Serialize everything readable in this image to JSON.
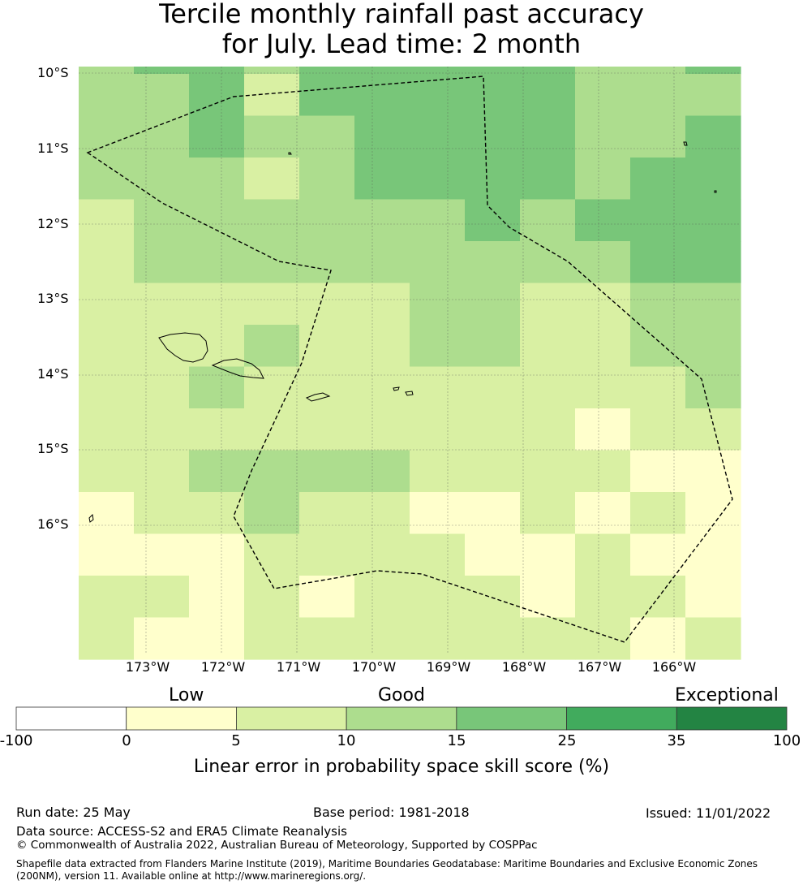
{
  "title_line1": "Tercile monthly rainfall past accuracy",
  "title_line2": "for July. Lead time: 2 month",
  "map": {
    "lat_labels": [
      "10°S",
      "11°S",
      "12°S",
      "13°S",
      "14°S",
      "15°S",
      "16°S"
    ],
    "lon_labels": [
      "173°W",
      "172°W",
      "171°W",
      "170°W",
      "169°W",
      "168°W",
      "167°W",
      "166°W"
    ],
    "skill_grid": [
      [
        "c10-15",
        "c15-25",
        "c15-25",
        "c10-15",
        "c15-25",
        "c15-25",
        "c15-25",
        "c15-25",
        "c15-25",
        "c10-15",
        "c10-15",
        "c15-25"
      ],
      [
        "c10-15",
        "c10-15",
        "c15-25",
        "c5-10",
        "c15-25",
        "c15-25",
        "c15-25",
        "c15-25",
        "c15-25",
        "c10-15",
        "c10-15",
        "c10-15"
      ],
      [
        "c10-15",
        "c10-15",
        "c15-25",
        "c10-15",
        "c10-15",
        "c15-25",
        "c15-25",
        "c15-25",
        "c15-25",
        "c10-15",
        "c10-15",
        "c15-25"
      ],
      [
        "c10-15",
        "c10-15",
        "c10-15",
        "c5-10",
        "c10-15",
        "c15-25",
        "c15-25",
        "c15-25",
        "c15-25",
        "c10-15",
        "c15-25",
        "c15-25"
      ],
      [
        "c5-10",
        "c10-15",
        "c10-15",
        "c10-15",
        "c10-15",
        "c10-15",
        "c10-15",
        "c15-25",
        "c10-15",
        "c15-25",
        "c15-25",
        "c15-25"
      ],
      [
        "c5-10",
        "c10-15",
        "c10-15",
        "c10-15",
        "c10-15",
        "c10-15",
        "c10-15",
        "c10-15",
        "c10-15",
        "c10-15",
        "c15-25",
        "c15-25"
      ],
      [
        "c5-10",
        "c5-10",
        "c5-10",
        "c5-10",
        "c5-10",
        "c5-10",
        "c10-15",
        "c10-15",
        "c5-10",
        "c5-10",
        "c10-15",
        "c10-15"
      ],
      [
        "c5-10",
        "c5-10",
        "c5-10",
        "c10-15",
        "c5-10",
        "c5-10",
        "c10-15",
        "c10-15",
        "c5-10",
        "c5-10",
        "c10-15",
        "c10-15"
      ],
      [
        "c5-10",
        "c5-10",
        "c10-15",
        "c5-10",
        "c5-10",
        "c5-10",
        "c5-10",
        "c5-10",
        "c5-10",
        "c5-10",
        "c5-10",
        "c10-15"
      ],
      [
        "c5-10",
        "c5-10",
        "c5-10",
        "c5-10",
        "c5-10",
        "c5-10",
        "c5-10",
        "c5-10",
        "c5-10",
        "c0-5",
        "c5-10",
        "c5-10"
      ],
      [
        "c5-10",
        "c5-10",
        "c10-15",
        "c10-15",
        "c10-15",
        "c10-15",
        "c5-10",
        "c5-10",
        "c5-10",
        "c5-10",
        "c0-5",
        "c0-5"
      ],
      [
        "c0-5",
        "c5-10",
        "c5-10",
        "c10-15",
        "c5-10",
        "c5-10",
        "c0-5",
        "c0-5",
        "c5-10",
        "c0-5",
        "c5-10",
        "c0-5"
      ],
      [
        "c0-5",
        "c0-5",
        "c0-5",
        "c5-10",
        "c5-10",
        "c5-10",
        "c5-10",
        "c0-5",
        "c0-5",
        "c5-10",
        "c0-5",
        "c0-5"
      ],
      [
        "c5-10",
        "c5-10",
        "c0-5",
        "c5-10",
        "c0-5",
        "c5-10",
        "c5-10",
        "c5-10",
        "c0-5",
        "c5-10",
        "c5-10",
        "c0-5"
      ],
      [
        "c5-10",
        "c0-5",
        "c0-5",
        "c5-10",
        "c5-10",
        "c5-10",
        "c5-10",
        "c5-10",
        "c5-10",
        "c5-10",
        "c0-5",
        "c5-10"
      ],
      [
        "c5-10",
        "c5-10",
        "c5-10",
        "c5-10",
        "c5-10",
        "c5-10",
        "c5-10",
        "c5-10",
        "c5-10",
        "c5-10",
        "c5-10",
        "c5-10"
      ]
    ]
  },
  "legend": {
    "categories": [
      "Low",
      "Good",
      "Exceptional"
    ],
    "bins": [
      {
        "key": "c-100-0",
        "from": "-100",
        "to": "0",
        "color": "#ffffff"
      },
      {
        "key": "c0-5",
        "from": "0",
        "to": "5",
        "color": "#ffffcc"
      },
      {
        "key": "c5-10",
        "from": "5",
        "to": "10",
        "color": "#d9f0a3"
      },
      {
        "key": "c10-15",
        "from": "10",
        "to": "15",
        "color": "#addd8e"
      },
      {
        "key": "c15-25",
        "from": "15",
        "to": "25",
        "color": "#78c679"
      },
      {
        "key": "c25-35",
        "from": "25",
        "to": "35",
        "color": "#41ab5d"
      },
      {
        "key": "c35-100",
        "from": "35",
        "to": "100",
        "color": "#238443"
      }
    ],
    "tick_labels": [
      "-100",
      "0",
      "5",
      "10",
      "15",
      "25",
      "35",
      "100"
    ],
    "title": "Linear error in probability space skill score (%)"
  },
  "footer": {
    "run_date": "Run date: 25 May",
    "base_period": "Base period: 1981-2018",
    "issued": "Issued: 11/01/2022",
    "data_source": "Data source: ACCESS-S2 and ERA5 Climate Reanalysis",
    "copyright": "© Commonwealth of Australia 2022, Australian Bureau of Meteorology, Supported by COSPPac",
    "shapefile_line1": "Shapefile data extracted from Flanders Marine Institute (2019), Maritime Boundaries Geodatabase: Maritime Boundaries and Exclusive Economic Zones",
    "shapefile_line2": "(200NM), version 11. Available online at http://www.marineregions.org/."
  }
}
